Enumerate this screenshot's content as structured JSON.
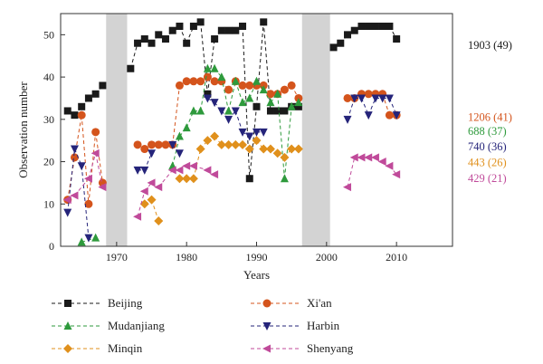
{
  "chart_data": {
    "type": "scatter",
    "xlabel": "Years",
    "ylabel": "Observation number",
    "xlim": [
      1962,
      2018
    ],
    "ylim": [
      0,
      55
    ],
    "xticks": [
      1970,
      1980,
      1990,
      2000,
      2010
    ],
    "yticks": [
      0,
      10,
      20,
      30,
      40,
      50
    ],
    "gaps": [
      [
        1968.5,
        1971.5
      ],
      [
        1996.5,
        2000.5
      ]
    ],
    "gap_color": "#d3d3d3",
    "series": [
      {
        "name": "Beijing",
        "color": "#1a1a1a",
        "marker": "square",
        "x": [
          1963,
          1964,
          1965,
          1966,
          1967,
          1968,
          1972,
          1973,
          1974,
          1975,
          1976,
          1977,
          1978,
          1979,
          1980,
          1981,
          1982,
          1983,
          1984,
          1985,
          1986,
          1987,
          1988,
          1989,
          1990,
          1991,
          1992,
          1993,
          1994,
          1995,
          1996,
          2001,
          2002,
          2003,
          2004,
          2005,
          2006,
          2007,
          2008,
          2009,
          2010
        ],
        "y": [
          32,
          31,
          33,
          35,
          36,
          38,
          42,
          48,
          49,
          48,
          50,
          49,
          51,
          52,
          48,
          52,
          53,
          36,
          49,
          51,
          51,
          51,
          52,
          16,
          33,
          53,
          32,
          32,
          32,
          33,
          33,
          47,
          48,
          50,
          51,
          52,
          52,
          52,
          52,
          52,
          49
        ]
      },
      {
        "name": "Xi'an",
        "color": "#d4541c",
        "marker": "circle",
        "x": [
          1963,
          1964,
          1965,
          1966,
          1967,
          1968,
          1973,
          1974,
          1975,
          1976,
          1977,
          1978,
          1979,
          1980,
          1981,
          1982,
          1983,
          1984,
          1985,
          1986,
          1987,
          1988,
          1989,
          1990,
          1991,
          1992,
          1993,
          1994,
          1995,
          1996,
          2003,
          2004,
          2005,
          2006,
          2007,
          2008,
          2009,
          2010
        ],
        "y": [
          11,
          21,
          31,
          10,
          27,
          15,
          24,
          23,
          24,
          24,
          24,
          24,
          38,
          39,
          39,
          39,
          40,
          39,
          39,
          37,
          39,
          38,
          38,
          38,
          38,
          36,
          36,
          37,
          38,
          35,
          35,
          35,
          36,
          36,
          36,
          36,
          31,
          31
        ]
      },
      {
        "name": "Mudanjiang",
        "color": "#2e9a3c",
        "marker": "triangle-up",
        "x": [
          1965,
          1967,
          1978,
          1979,
          1980,
          1981,
          1982,
          1983,
          1984,
          1985,
          1986,
          1987,
          1988,
          1989,
          1990,
          1991,
          1992,
          1993,
          1994,
          1995,
          1996
        ],
        "y": [
          1,
          2,
          19,
          26,
          28,
          32,
          32,
          42,
          42,
          40,
          32,
          39,
          34,
          35,
          39,
          37,
          34,
          36,
          16,
          33,
          34
        ]
      },
      {
        "name": "Harbin",
        "color": "#25247a",
        "marker": "triangle-down",
        "x": [
          1963,
          1964,
          1965,
          1966,
          1973,
          1974,
          1975,
          1978,
          1979,
          1983,
          1984,
          1985,
          1986,
          1987,
          1988,
          1989,
          1990,
          1991,
          2003,
          2004,
          2005,
          2006,
          2007,
          2008,
          2009,
          2010
        ],
        "y": [
          8,
          23,
          19,
          2,
          18,
          18,
          22,
          24,
          22,
          35,
          34,
          32,
          30,
          32,
          27,
          26,
          27,
          27,
          30,
          35,
          35,
          31,
          35,
          35,
          35,
          31
        ]
      },
      {
        "name": "Minqin",
        "color": "#e0901c",
        "marker": "diamond",
        "x": [
          1974,
          1975,
          1976,
          1979,
          1980,
          1981,
          1982,
          1983,
          1984,
          1985,
          1986,
          1987,
          1988,
          1989,
          1990,
          1991,
          1992,
          1993,
          1994,
          1995,
          1996
        ],
        "y": [
          10,
          11,
          6,
          16,
          16,
          16,
          23,
          25,
          26,
          24,
          24,
          24,
          24,
          23,
          25,
          23,
          23,
          22,
          21,
          23,
          23
        ]
      },
      {
        "name": "Shenyang",
        "color": "#c04a9a",
        "marker": "triangle-left",
        "x": [
          1963,
          1964,
          1966,
          1967,
          1968,
          1973,
          1974,
          1975,
          1976,
          1978,
          1979,
          1980,
          1981,
          1983,
          1984,
          2003,
          2004,
          2005,
          2006,
          2007,
          2008,
          2009,
          2010
        ],
        "y": [
          11,
          12,
          16,
          22,
          14,
          7,
          13,
          15,
          14,
          18,
          18,
          19,
          19,
          18,
          17,
          14,
          21,
          21,
          21,
          21,
          20,
          19,
          17
        ]
      }
    ],
    "annotations": [
      {
        "text": "1903 (49)",
        "color": "#1a1a1a",
        "y": 47.5
      },
      {
        "text": "1206 (41)",
        "color": "#d4541c",
        "y": 30.5
      },
      {
        "text": "688 (37)",
        "color": "#2e9a3c",
        "y": 27.2
      },
      {
        "text": "740 (36)",
        "color": "#25247a",
        "y": 23.5
      },
      {
        "text": "443 (26)",
        "color": "#e0901c",
        "y": 19.8
      },
      {
        "text": "429 (21)",
        "color": "#c04a9a",
        "y": 16.0
      }
    ]
  }
}
